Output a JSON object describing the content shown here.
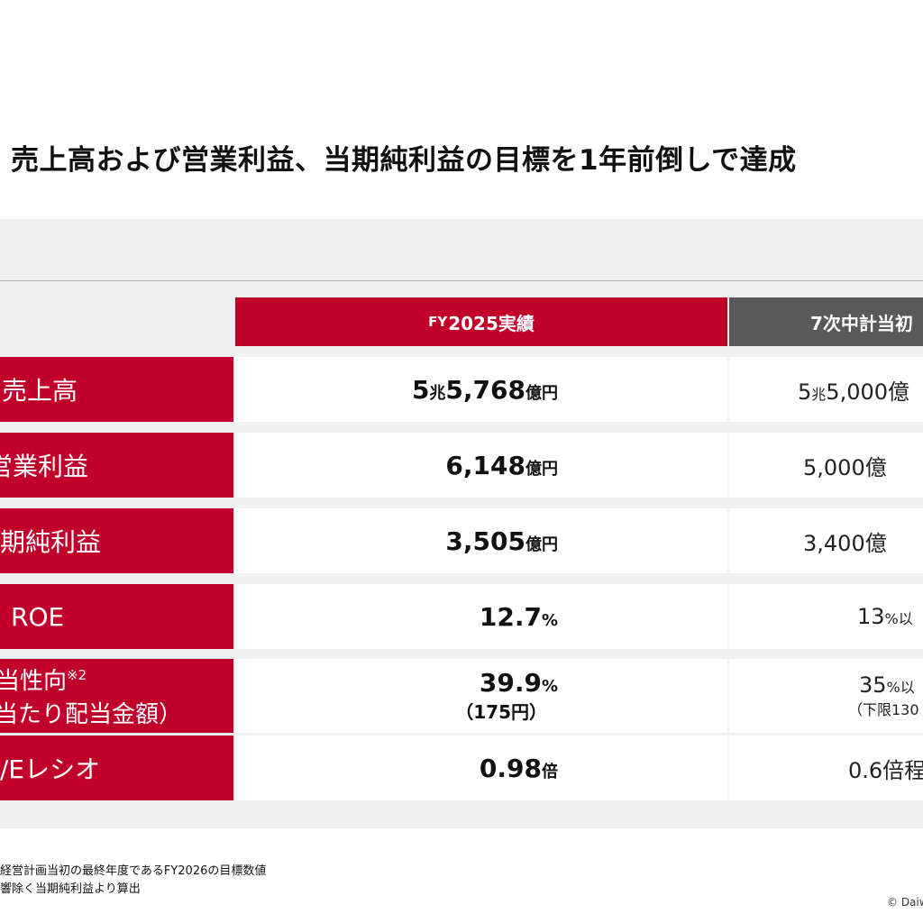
{
  "title": "売上高および営業利益、当期純利益の目標を1年前倒しで達成",
  "header": {
    "main_prefix": "FY",
    "main_label": "2025実績",
    "side_label": "7次中計当初"
  },
  "rows": [
    {
      "label": "売上高",
      "value_parts": [
        "5",
        "兆",
        "5,768",
        "億円"
      ],
      "side_parts": [
        "5",
        "兆",
        "5,000",
        "億"
      ]
    },
    {
      "label": "営業利益",
      "value": "6,148",
      "unit": "億円",
      "side_value": "5,000",
      "side_unit": "億"
    },
    {
      "label": "期純利益",
      "value": "3,505",
      "unit": "億円",
      "side_value": "3,400",
      "side_unit": "億"
    },
    {
      "label": "ROE",
      "value": "12.7",
      "unit": "%",
      "side_value": "13",
      "side_unit": "%以"
    },
    {
      "label": "当性向",
      "label_sup": "※2",
      "label_line2": "当たり配当金額）",
      "value": "39.9",
      "unit": "%",
      "sub": "（175円）",
      "side_value": "35",
      "side_unit": "%以",
      "side_sub": "（下限130"
    },
    {
      "label": "/Eレシオ",
      "value": "0.98",
      "unit": "倍",
      "side_value": "0.6",
      "side_unit": "倍程"
    }
  ],
  "footnotes": [
    "経営計画当初の最終年度であるFY2026の目標数値",
    "響除く当期純利益より算出"
  ],
  "copyright": "© Daiw"
}
